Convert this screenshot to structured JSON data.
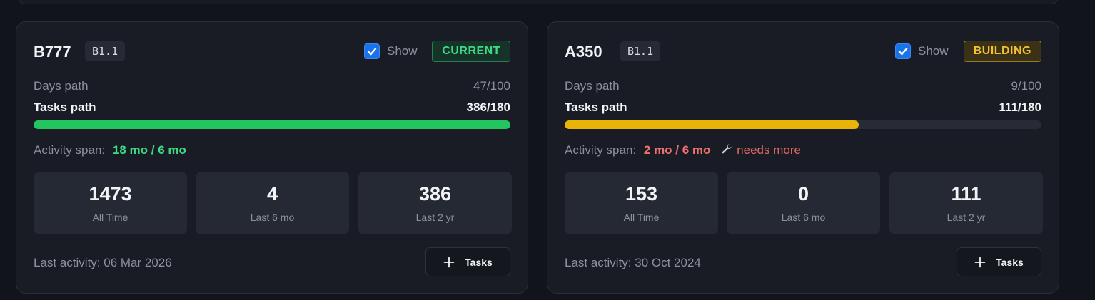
{
  "cards": [
    {
      "model": "B777",
      "version": "B1.1",
      "show_label": "Show",
      "show_checked": true,
      "status": "CURRENT",
      "days_label": "Days path",
      "days_value": "47/100",
      "tasks_label": "Tasks path",
      "tasks_value": "386/180",
      "progress_fraction": 1.0,
      "progress_color": "#22c55e",
      "activity_label": "Activity span:",
      "activity_value": "18 mo / 6 mo",
      "stats": [
        {
          "value": "1473",
          "caption": "All Time"
        },
        {
          "value": "4",
          "caption": "Last 6 mo"
        },
        {
          "value": "386",
          "caption": "Last 2 yr"
        }
      ],
      "last_activity": "Last activity: 06 Mar 2026",
      "add_button_label": "Tasks"
    },
    {
      "model": "A350",
      "version": "B1.1",
      "show_label": "Show",
      "show_checked": true,
      "status": "BUILDING",
      "days_label": "Days path",
      "days_value": "9/100",
      "tasks_label": "Tasks path",
      "tasks_value": "111/180",
      "progress_fraction": 0.617,
      "progress_color": "#eab308",
      "activity_label": "Activity span:",
      "activity_value": "2 mo / 6 mo",
      "activity_note": "needs more",
      "note_icon": "wrench-icon",
      "stats": [
        {
          "value": "153",
          "caption": "All Time"
        },
        {
          "value": "0",
          "caption": "Last 6 mo"
        },
        {
          "value": "111",
          "caption": "Last 2 yr"
        }
      ],
      "last_activity": "Last activity: 30 Oct 2024",
      "add_button_label": "Tasks"
    }
  ]
}
